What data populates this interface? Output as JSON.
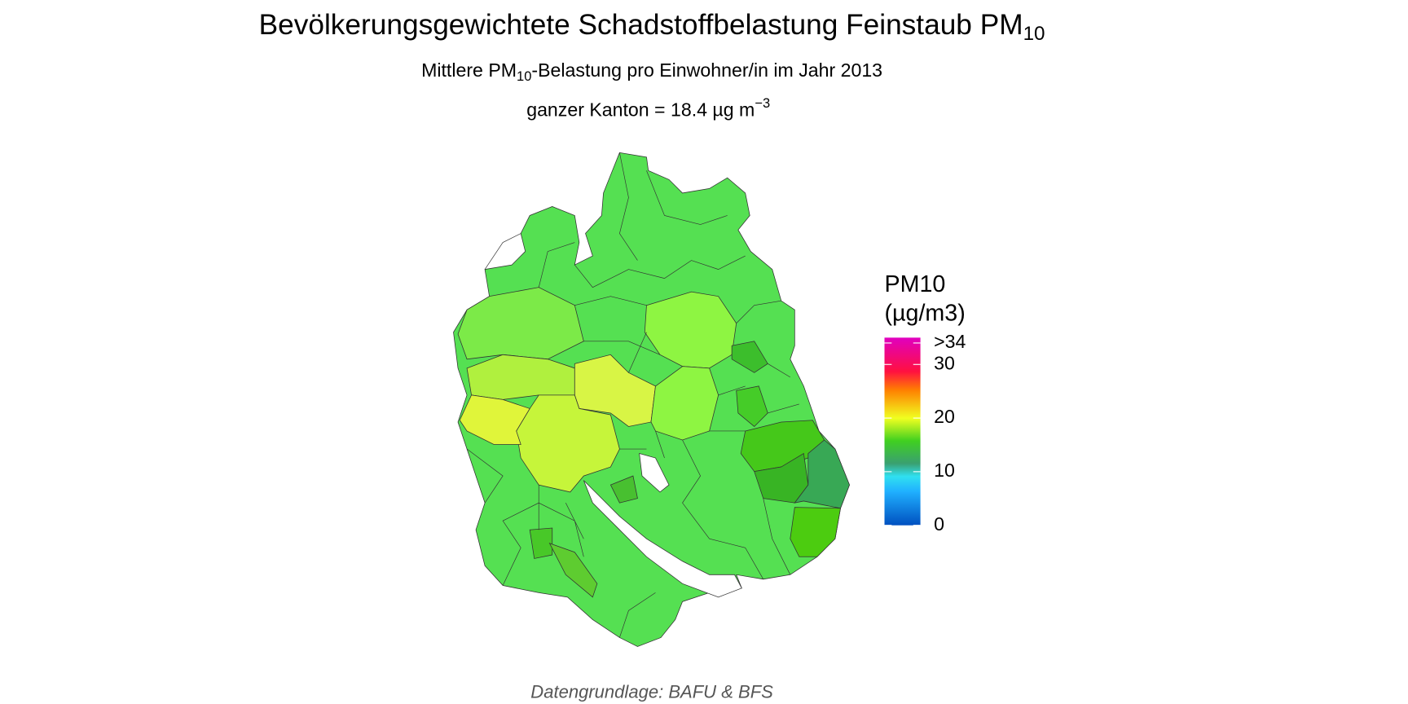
{
  "header": {
    "title": {
      "text": "Bevölkerungsgewichtete Schadstoffbelastung Feinstaub PM",
      "subscript": "10"
    },
    "subtitle": {
      "before": "Mittlere PM",
      "subscript": "10",
      "after": "-Belastung pro Einwohner/in im Jahr 2013"
    },
    "note": {
      "text": "ganzer Kanton = 18.4 µg m",
      "superscript": "−3"
    }
  },
  "legend": {
    "title_lines": [
      "PM10",
      "(µg/m3)"
    ],
    "lim": [
      0,
      35
    ],
    "ticks": [
      0,
      10,
      20,
      30,
      {
        "value": 34,
        "label": ">34"
      }
    ]
  },
  "caption": "Datengrundlage: BAFU & BFS"
}
